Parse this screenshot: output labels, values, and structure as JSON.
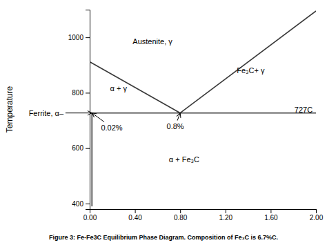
{
  "chart_data": {
    "type": "line",
    "title": "Figure 3: Fe-Fe3C Equilibrium Phase Diagram.  Composition of Fe₃C is 6.7%C.",
    "ylabel": "Temperature",
    "xlim": [
      0.0,
      2.0
    ],
    "ylim": [
      380,
      1100
    ],
    "xticks": [
      {
        "value": 0.0,
        "label": "0.00"
      },
      {
        "value": 0.4,
        "label": "0.40"
      },
      {
        "value": 0.8,
        "label": "0.80"
      },
      {
        "value": 1.2,
        "label": "1.20"
      },
      {
        "value": 1.6,
        "label": "1.60"
      },
      {
        "value": 2.0,
        "label": "2.00"
      }
    ],
    "yticks": [
      400,
      600,
      800,
      1000
    ],
    "color": "#3a3a3a",
    "series": [
      {
        "x": [
          0.0,
          0.8
        ],
        "values": [
          912,
          727
        ]
      },
      {
        "x": [
          0.8,
          2.0
        ],
        "values": [
          727,
          1095
        ]
      },
      {
        "x": [
          0.0,
          2.0
        ],
        "values": [
          727,
          727
        ]
      },
      {
        "x": [
          0.02,
          0.02
        ],
        "values": [
          390,
          727
        ]
      }
    ],
    "annotations": [
      {
        "text": "Austenite, γ",
        "x": 0.38,
        "y": 985
      },
      {
        "text": "α + γ",
        "x": 0.18,
        "y": 815
      },
      {
        "text": "Fe₃C+ γ",
        "x": 1.3,
        "y": 880
      },
      {
        "text": "α + Fe₃C",
        "x": 0.7,
        "y": 560
      },
      {
        "text": "727C",
        "x": 1.97,
        "y": 740
      },
      {
        "text": "0.02%",
        "x": 0.1,
        "y": 675,
        "arrow_x": 0.02,
        "arrow_y": 727
      },
      {
        "text": "0.8%",
        "x": 0.68,
        "y": 680,
        "arrow_x": 0.8,
        "arrow_y": 727
      },
      {
        "text": "Ferrite, α–",
        "arrow_x": 0.02,
        "arrow_y": 727
      }
    ]
  }
}
